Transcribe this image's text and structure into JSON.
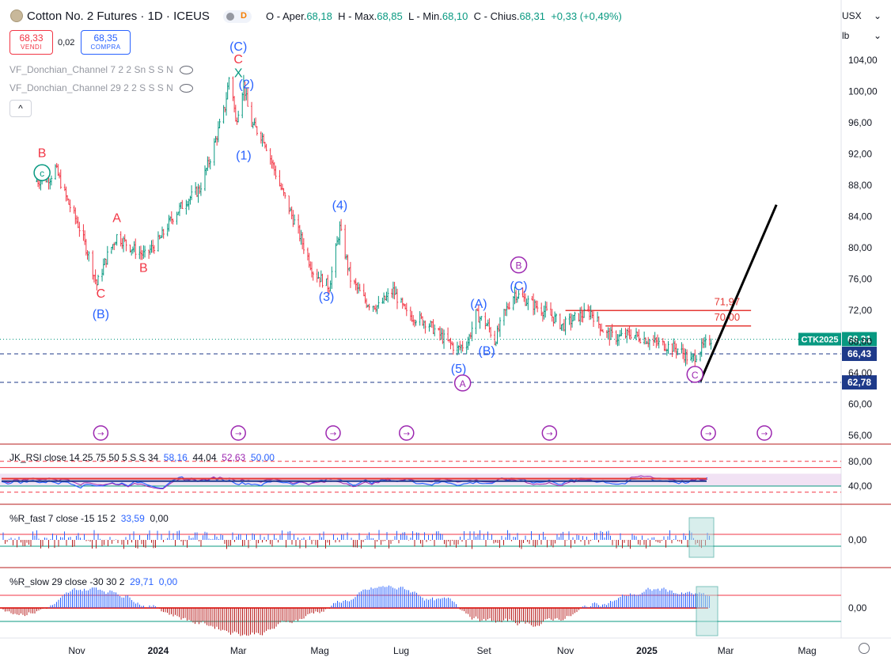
{
  "header": {
    "title": "Cotton No. 2 Futures · 1D · ICEUS",
    "toggle_letter": "D",
    "ohlc": {
      "o_label": "O - Aper.",
      "o": "68,18",
      "h_label": "H - Max.",
      "h": "68,85",
      "l_label": "L - Min.",
      "l": "68,10",
      "c_label": "C - Chius.",
      "c": "68,31",
      "change": "+0,33 (+0,49%)"
    }
  },
  "trade": {
    "sell_price": "68,33",
    "sell_label": "VENDI",
    "spread": "0,02",
    "buy_price": "68,35",
    "buy_label": "COMPRA"
  },
  "indicators": [
    "VF_Donchian_Channel 7 2 2 Sn S S N",
    "VF_Donchian_Channel 29 2 2 S S S N"
  ],
  "collapse_label": "^",
  "units": {
    "currency": "USX",
    "unit": "lb"
  },
  "colors": {
    "up": "#089981",
    "down": "#f23645",
    "blue": "#2962ff",
    "purple": "#9c27b0",
    "navy": "#1e3a8a",
    "red_line": "#e53935"
  },
  "chart_data": {
    "type": "candlestick",
    "x_ticks": [
      "Nov",
      "2024",
      "Mar",
      "Mag",
      "Lug",
      "Set",
      "Nov",
      "2025",
      "Mar",
      "Mag"
    ],
    "x_tick_dates": [
      "2023-11-01",
      "2024-01-01",
      "2024-03-01",
      "2024-05-01",
      "2024-07-01",
      "2024-09-01",
      "2024-11-01",
      "2025-01-01",
      "2025-03-01",
      "2025-05-01"
    ],
    "y_ticks": [
      "104,00",
      "100,00",
      "96,00",
      "92,00",
      "88,00",
      "84,00",
      "80,00",
      "76,00",
      "72,00",
      "68,00",
      "64,00",
      "60,00",
      "56,00"
    ],
    "y_tick_values": [
      104,
      100,
      96,
      92,
      88,
      84,
      80,
      76,
      72,
      68,
      64,
      60,
      56
    ],
    "ylim": [
      54.8,
      108.5
    ],
    "price_path": [
      [
        "2023-10-01",
        88.5
      ],
      [
        "2023-10-12",
        89
      ],
      [
        "2023-10-16",
        90.2
      ],
      [
        "2023-10-25",
        86
      ],
      [
        "2023-11-02",
        83
      ],
      [
        "2023-11-10",
        79
      ],
      [
        "2023-11-16",
        75.3
      ],
      [
        "2023-11-24",
        79
      ],
      [
        "2023-12-01",
        81.5
      ],
      [
        "2023-12-12",
        80
      ],
      [
        "2023-12-22",
        79
      ],
      [
        "2024-01-02",
        81
      ],
      [
        "2024-01-12",
        84
      ],
      [
        "2024-01-22",
        86
      ],
      [
        "2024-02-01",
        87.5
      ],
      [
        "2024-02-10",
        92
      ],
      [
        "2024-02-20",
        98
      ],
      [
        "2024-02-24",
        103
      ],
      [
        "2024-02-28",
        96
      ],
      [
        "2024-03-05",
        101
      ],
      [
        "2024-03-10",
        96
      ],
      [
        "2024-03-20",
        94
      ],
      [
        "2024-04-01",
        88
      ],
      [
        "2024-04-15",
        82
      ],
      [
        "2024-04-26",
        77
      ],
      [
        "2024-05-08",
        75
      ],
      [
        "2024-05-16",
        82.5
      ],
      [
        "2024-05-24",
        76
      ],
      [
        "2024-06-05",
        73
      ],
      [
        "2024-06-14",
        72.5
      ],
      [
        "2024-06-25",
        74.5
      ],
      [
        "2024-07-05",
        71.5
      ],
      [
        "2024-07-20",
        70.5
      ],
      [
        "2024-08-01",
        68.5
      ],
      [
        "2024-08-12",
        67
      ],
      [
        "2024-08-20",
        68
      ],
      [
        "2024-08-26",
        71.5
      ],
      [
        "2024-09-04",
        70
      ],
      [
        "2024-09-09",
        68
      ],
      [
        "2024-09-16",
        71.5
      ],
      [
        "2024-09-24",
        74.2
      ],
      [
        "2024-10-05",
        73
      ],
      [
        "2024-10-20",
        71.5
      ],
      [
        "2024-10-30",
        70
      ],
      [
        "2024-11-10",
        71.2
      ],
      [
        "2024-11-20",
        71.8
      ],
      [
        "2024-12-01",
        69
      ],
      [
        "2024-12-10",
        68.5
      ],
      [
        "2024-12-20",
        69
      ],
      [
        "2025-01-05",
        68
      ],
      [
        "2025-01-15",
        67.5
      ],
      [
        "2025-01-25",
        67
      ],
      [
        "2025-02-03",
        65.5
      ],
      [
        "2025-02-10",
        67
      ],
      [
        "2025-02-18",
        68.31
      ]
    ],
    "horizontal_lines": [
      {
        "label": "71,97",
        "value": 71.97,
        "from": "2024-11-01",
        "to": "2025-03-20",
        "color": "#e53935"
      },
      {
        "label": "70,00",
        "value": 70.0,
        "from": "2024-12-01",
        "to": "2025-03-20",
        "color": "#e53935"
      }
    ],
    "dashed_levels": [
      {
        "value": 66.43,
        "label": "66,43",
        "color": "#1e3a8a"
      },
      {
        "value": 62.78,
        "label": "62,78",
        "color": "#1e3a8a"
      }
    ],
    "dotted_level": {
      "value": 68.31,
      "label": "68,31",
      "ticker": "CTK2025"
    },
    "projection_line": {
      "from": [
        "2025-02-10",
        62.9
      ],
      "to": [
        "2025-04-08",
        85.5
      ]
    },
    "wave_labels": [
      {
        "text": "B",
        "d": "2023-10-06",
        "y": 91.6,
        "color": "#f23645"
      },
      {
        "text": "c",
        "d": "2023-10-06",
        "y": 89.1,
        "color": "#089981",
        "circle": true
      },
      {
        "text": "A",
        "d": "2023-12-01",
        "y": 83.3,
        "color": "#f23645"
      },
      {
        "text": "B",
        "d": "2023-12-21",
        "y": 76.9,
        "color": "#f23645"
      },
      {
        "text": "C",
        "d": "2023-11-19",
        "y": 73.6,
        "color": "#f23645"
      },
      {
        "text": "(B)",
        "d": "2023-11-19",
        "y": 71.0,
        "color": "#2962ff"
      },
      {
        "text": "(C)",
        "d": "2024-03-01",
        "y": 105.2,
        "color": "#2962ff"
      },
      {
        "text": "C",
        "d": "2024-03-01",
        "y": 103.6,
        "color": "#f23645"
      },
      {
        "text": "X",
        "d": "2024-03-01",
        "y": 101.8,
        "color": "#089981"
      },
      {
        "text": "(2)",
        "d": "2024-03-07",
        "y": 100.4,
        "color": "#2962ff"
      },
      {
        "text": "(1)",
        "d": "2024-03-05",
        "y": 91.3,
        "color": "#2962ff"
      },
      {
        "text": "(4)",
        "d": "2024-05-16",
        "y": 84.9,
        "color": "#2962ff"
      },
      {
        "text": "(3)",
        "d": "2024-05-06",
        "y": 73.2,
        "color": "#2962ff"
      },
      {
        "text": "B",
        "d": "2024-09-27",
        "y": 77.3,
        "color": "#9c27b0",
        "circle": true
      },
      {
        "text": "(C)",
        "d": "2024-09-27",
        "y": 74.6,
        "color": "#2962ff"
      },
      {
        "text": "(A)",
        "d": "2024-08-28",
        "y": 72.3,
        "color": "#2962ff"
      },
      {
        "text": "(B)",
        "d": "2024-09-03",
        "y": 66.3,
        "color": "#2962ff"
      },
      {
        "text": "(5)",
        "d": "2024-08-13",
        "y": 64.0,
        "color": "#2962ff"
      },
      {
        "text": "A",
        "d": "2024-08-16",
        "y": 62.2,
        "color": "#9c27b0",
        "circle": true
      },
      {
        "text": "C",
        "d": "2025-02-06",
        "y": 63.3,
        "color": "#9c27b0",
        "circle": true
      }
    ],
    "event_markers": [
      "2023-11-19",
      "2024-03-01",
      "2024-05-11",
      "2024-07-05",
      "2024-10-20",
      "2025-02-16",
      "2025-03-30"
    ],
    "rsi": {
      "title": "JK_RSI close 14 25 75 50 5 S S 34",
      "values": [
        {
          "text": "58,16",
          "color": "#2962ff"
        },
        {
          "text": "44,04",
          "color": "#131722"
        },
        {
          "text": "52,63",
          "color": "#9c27b0"
        },
        {
          "text": "50,00",
          "color": "#2962ff"
        }
      ],
      "y_ticks": [
        "80,00",
        "40,00"
      ],
      "y_tick_values": [
        80,
        40
      ]
    },
    "r_fast": {
      "title": "%R_fast 7 close -15 15 2",
      "values": [
        {
          "text": "33,59",
          "color": "#2962ff"
        },
        {
          "text": "0,00",
          "color": "#131722"
        }
      ],
      "y_tick": "0,00"
    },
    "r_slow": {
      "title": "%R_slow 29 close -30 30 2",
      "values": [
        {
          "text": "29,71",
          "color": "#2962ff"
        },
        {
          "text": "0,00",
          "color": "#2962ff"
        }
      ],
      "y_tick": "0,00"
    }
  }
}
